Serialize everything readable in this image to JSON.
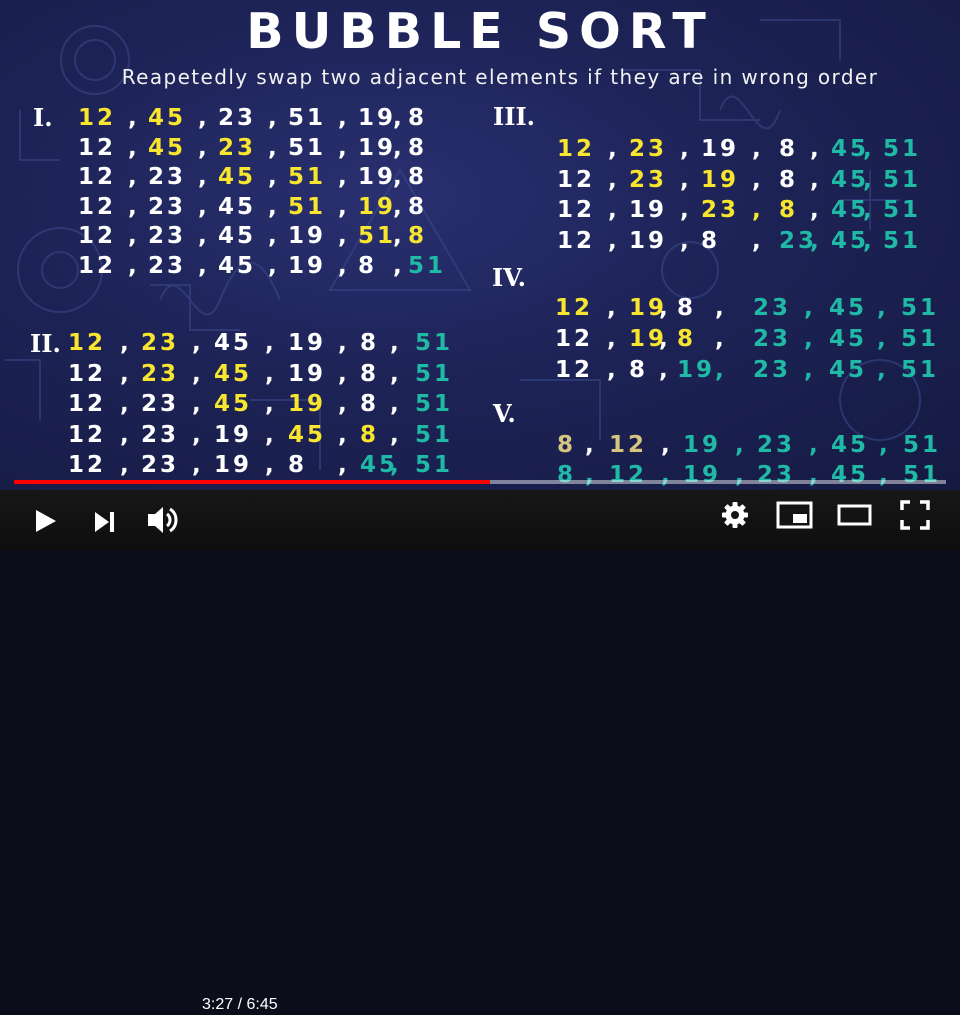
{
  "video": {
    "title": "BUBBLE SORT",
    "subtitle": "Reapetedly swap two adjacent elements if they are in wrong order"
  },
  "passes": [
    {
      "label": "I.",
      "rows": [
        [
          [
            "12",
            "yellow"
          ],
          [
            "45",
            "yellow"
          ],
          [
            "23",
            "white"
          ],
          [
            "51",
            "white"
          ],
          [
            "19",
            "white"
          ],
          [
            "8",
            "white"
          ]
        ],
        [
          [
            "12",
            "white"
          ],
          [
            "45",
            "yellow"
          ],
          [
            "23",
            "yellow"
          ],
          [
            "51",
            "white"
          ],
          [
            "19",
            "white"
          ],
          [
            "8",
            "white"
          ]
        ],
        [
          [
            "12",
            "white"
          ],
          [
            "23",
            "white"
          ],
          [
            "45",
            "yellow"
          ],
          [
            "51",
            "yellow"
          ],
          [
            "19",
            "white"
          ],
          [
            "8",
            "white"
          ]
        ],
        [
          [
            "12",
            "white"
          ],
          [
            "23",
            "white"
          ],
          [
            "45",
            "white"
          ],
          [
            "51",
            "yellow"
          ],
          [
            "19",
            "yellow"
          ],
          [
            "8",
            "white"
          ]
        ],
        [
          [
            "12",
            "white"
          ],
          [
            "23",
            "white"
          ],
          [
            "45",
            "white"
          ],
          [
            "19",
            "white"
          ],
          [
            "51",
            "yellow"
          ],
          [
            "8",
            "yellow"
          ]
        ],
        [
          [
            "12",
            "white"
          ],
          [
            "23",
            "white"
          ],
          [
            "45",
            "white"
          ],
          [
            "19",
            "white"
          ],
          [
            "8",
            "white"
          ],
          [
            "51",
            "teal"
          ]
        ]
      ]
    },
    {
      "label": "II.",
      "rows": [
        [
          [
            "12",
            "yellow"
          ],
          [
            "23",
            "yellow"
          ],
          [
            "45",
            "white"
          ],
          [
            "19",
            "white"
          ],
          [
            "8",
            "white"
          ],
          [
            "51",
            "teal"
          ]
        ],
        [
          [
            "12",
            "white"
          ],
          [
            "23",
            "yellow"
          ],
          [
            "45",
            "yellow"
          ],
          [
            "19",
            "white"
          ],
          [
            "8",
            "white"
          ],
          [
            "51",
            "teal"
          ]
        ],
        [
          [
            "12",
            "white"
          ],
          [
            "23",
            "white"
          ],
          [
            "45",
            "yellow"
          ],
          [
            "19",
            "yellow"
          ],
          [
            "8",
            "white"
          ],
          [
            "51",
            "teal"
          ]
        ],
        [
          [
            "12",
            "white"
          ],
          [
            "23",
            "white"
          ],
          [
            "19",
            "white"
          ],
          [
            "45",
            "yellow"
          ],
          [
            "8",
            "yellow"
          ],
          [
            "51",
            "teal"
          ]
        ],
        [
          [
            "12",
            "white"
          ],
          [
            "23",
            "white"
          ],
          [
            "19",
            "white"
          ],
          [
            "8",
            "white"
          ],
          [
            "45",
            "teal"
          ],
          [
            "51",
            "teal"
          ]
        ]
      ]
    },
    {
      "label": "III.",
      "rows": [
        [
          [
            "12",
            "yellow"
          ],
          [
            "23",
            "yellow"
          ],
          [
            "19",
            "white"
          ],
          [
            "8",
            "white"
          ],
          [
            "45",
            "teal"
          ],
          [
            "51",
            "teal"
          ]
        ],
        [
          [
            "12",
            "white"
          ],
          [
            "23",
            "yellow"
          ],
          [
            "19",
            "yellow"
          ],
          [
            "8",
            "white"
          ],
          [
            "45",
            "teal"
          ],
          [
            "51",
            "teal"
          ]
        ],
        [
          [
            "12",
            "white"
          ],
          [
            "19",
            "white"
          ],
          [
            "23",
            "yellow"
          ],
          [
            "8",
            "yellow"
          ],
          [
            "45",
            "teal"
          ],
          [
            "51",
            "teal"
          ]
        ],
        [
          [
            "12",
            "white"
          ],
          [
            "19",
            "white"
          ],
          [
            "8",
            "white"
          ],
          [
            "23",
            "teal"
          ],
          [
            "45",
            "teal"
          ],
          [
            "51",
            "teal"
          ]
        ]
      ]
    },
    {
      "label": "IV.",
      "rows": [
        [
          [
            "12",
            "yellow"
          ],
          [
            "19",
            "yellow"
          ],
          [
            "8",
            "white"
          ],
          [
            "23",
            "teal"
          ],
          [
            "45",
            "teal"
          ],
          [
            "51",
            "teal"
          ]
        ],
        [
          [
            "12",
            "white"
          ],
          [
            "19",
            "yellow"
          ],
          [
            "8",
            "yellow"
          ],
          [
            "23",
            "teal"
          ],
          [
            "45",
            "teal"
          ],
          [
            "51",
            "teal"
          ]
        ],
        [
          [
            "12",
            "white"
          ],
          [
            "8",
            "white"
          ],
          [
            "19",
            "teal"
          ],
          [
            "23",
            "teal"
          ],
          [
            "45",
            "teal"
          ],
          [
            "51",
            "teal"
          ]
        ]
      ]
    },
    {
      "label": "V.",
      "rows": [
        [
          [
            "8",
            "pale"
          ],
          [
            "12",
            "pale"
          ],
          [
            "19",
            "teal"
          ],
          [
            "23",
            "teal"
          ],
          [
            "45",
            "teal"
          ],
          [
            "51",
            "teal"
          ]
        ],
        [
          [
            "8",
            "teal"
          ],
          [
            "12",
            "teal"
          ],
          [
            "19",
            "teal"
          ],
          [
            "23",
            "teal"
          ],
          [
            "45",
            "teal"
          ],
          [
            "51",
            "teal"
          ]
        ]
      ]
    }
  ],
  "separator": ",",
  "player": {
    "current_time": "3:27",
    "time_separator": "/",
    "duration": "6:45",
    "progress_fraction": 0.511,
    "progress_color": "#ff0000",
    "icons": [
      "play-icon",
      "next-icon",
      "volume-icon",
      "settings-icon",
      "miniplayer-icon",
      "theater-mode-icon",
      "fullscreen-icon"
    ]
  },
  "colors": {
    "background": "#1d2356",
    "highlight": "#f7e52f",
    "sorted": "#1fb9a6",
    "text": "#ffffff"
  }
}
